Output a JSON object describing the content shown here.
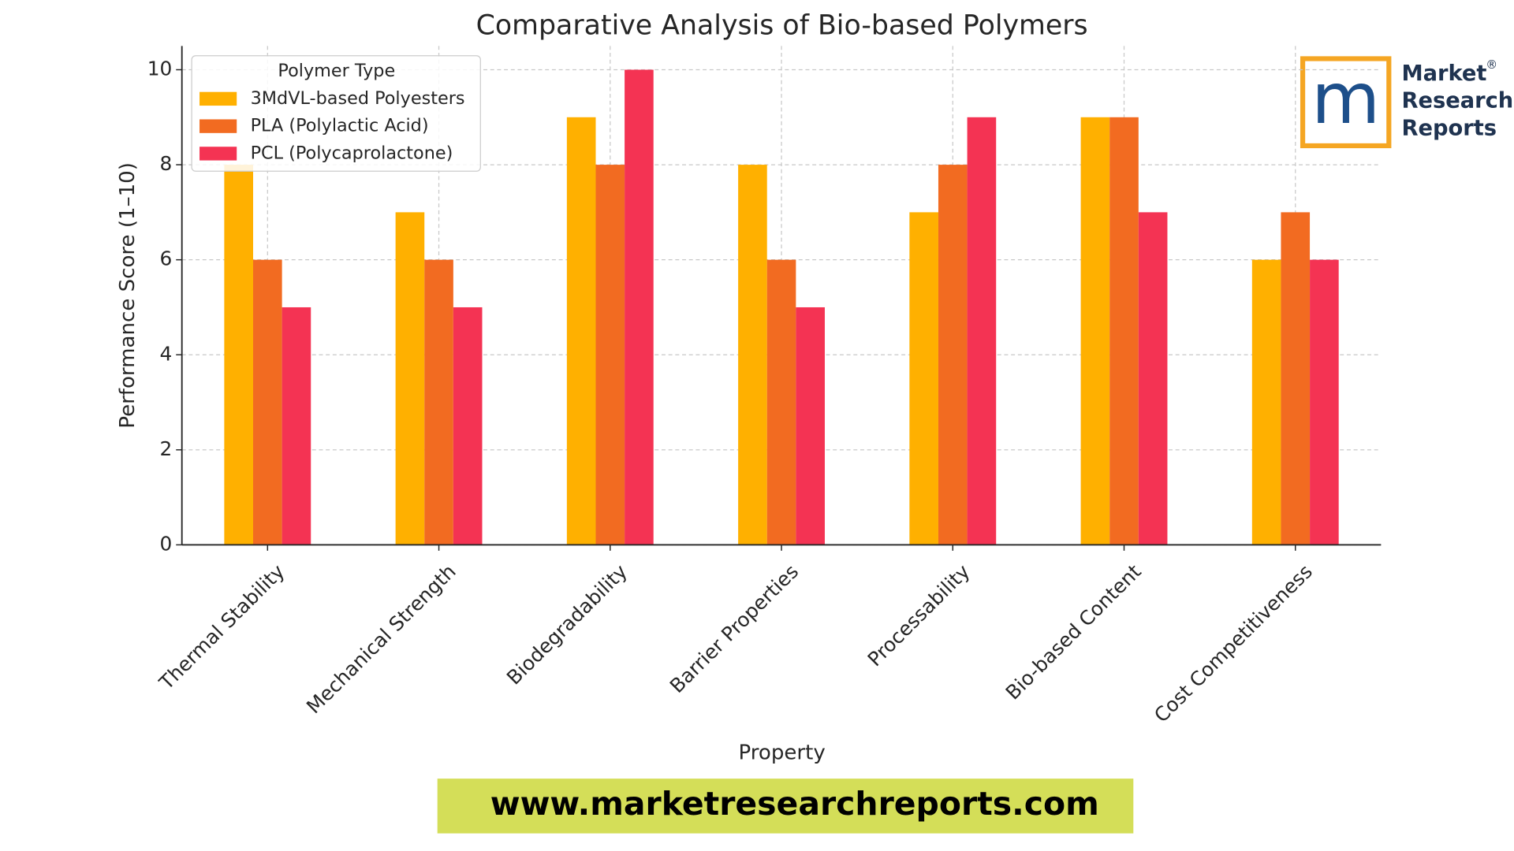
{
  "chart_data": {
    "type": "bar",
    "title": "Comparative Analysis of Bio-based Polymers",
    "x_label": "Property",
    "y_label": "Performance Score (1–10)",
    "categories": [
      "Thermal Stability",
      "Mechanical Strength",
      "Biodegradability",
      "Barrier Properties",
      "Processability",
      "Bio-based Content",
      "Cost Competitiveness"
    ],
    "series": [
      {
        "name": "3MdVL-based Polyesters",
        "color": "#ffb000",
        "values": [
          8,
          7,
          9,
          8,
          7,
          9,
          6
        ]
      },
      {
        "name": "PLA (Polylactic Acid)",
        "color": "#f26b21",
        "values": [
          6,
          6,
          8,
          6,
          8,
          9,
          7
        ]
      },
      {
        "name": "PCL (Polycaprolactone)",
        "color": "#f43353",
        "values": [
          5,
          5,
          10,
          5,
          9,
          7,
          6
        ]
      }
    ],
    "legend_title": "Polymer Type",
    "legend": "upper left",
    "ylim": [
      0,
      10.5
    ],
    "yticks": [
      0,
      2,
      4,
      6,
      8,
      10
    ],
    "grid": true
  },
  "logo": {
    "mark": "m",
    "lines": [
      "Market",
      "Research",
      "Reports"
    ],
    "registered": "®"
  },
  "footer": {
    "url": "www.marketresearchreports.com"
  }
}
